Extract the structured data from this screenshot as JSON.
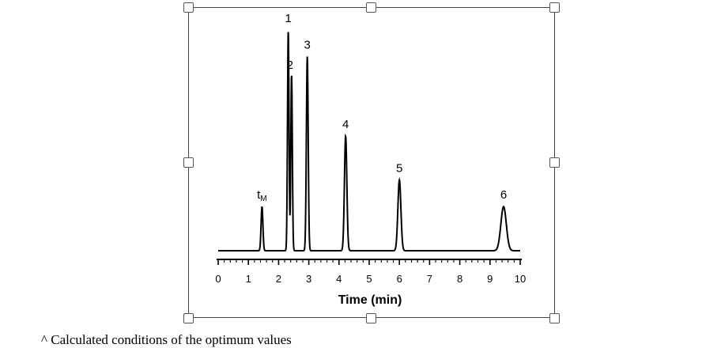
{
  "caption": "^ Calculated conditions of the optimum values",
  "chart_data": {
    "type": "line",
    "title": "",
    "xlabel": "Time (min)",
    "ylabel": "",
    "xlim": [
      0,
      10
    ],
    "x_ticks": [
      "0",
      "1",
      "2",
      "3",
      "4",
      "5",
      "6",
      "7",
      "8",
      "9",
      "10"
    ],
    "grid": false,
    "legend": "none",
    "series": [
      {
        "peaks": [
          {
            "label": "t",
            "label_sub": "M",
            "x": 1.45,
            "height": 0.2,
            "sigma": 0.03
          },
          {
            "label": "1",
            "x": 2.32,
            "height": 1.0,
            "sigma": 0.025
          },
          {
            "label": "2",
            "x": 2.43,
            "height": 0.8,
            "sigma": 0.025
          },
          {
            "label": "3",
            "x": 2.95,
            "height": 0.88,
            "sigma": 0.03
          },
          {
            "label": "4",
            "x": 4.22,
            "height": 0.52,
            "sigma": 0.04
          },
          {
            "label": "5",
            "x": 6.0,
            "height": 0.32,
            "sigma": 0.05
          },
          {
            "label": "6",
            "x": 9.45,
            "height": 0.2,
            "sigma": 0.09
          }
        ]
      }
    ]
  }
}
